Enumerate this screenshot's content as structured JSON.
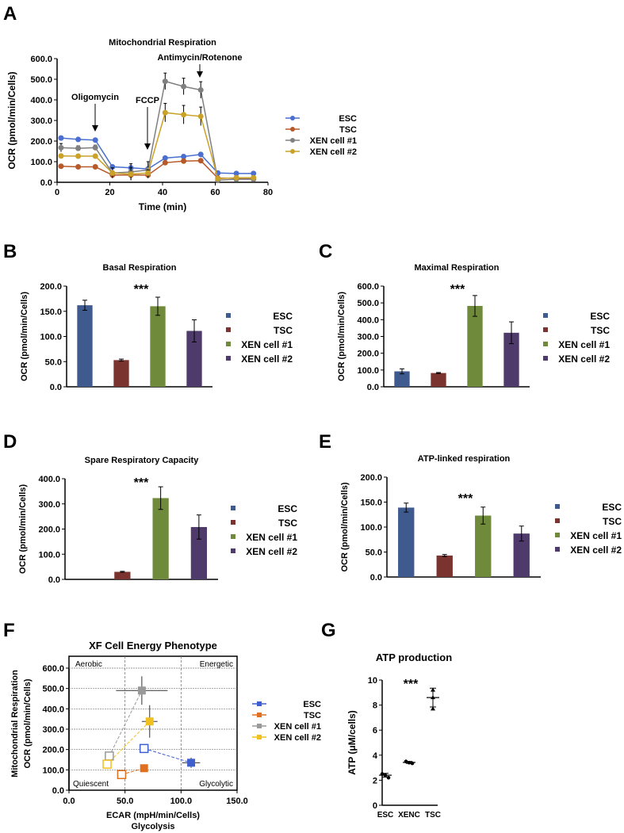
{
  "panel_letters": [
    "A",
    "B",
    "C",
    "D",
    "E",
    "F",
    "G"
  ],
  "chart_data": [
    {
      "id": "A",
      "type": "line",
      "title": "Mitochondrial Respiration",
      "xlabel": "Time (min)",
      "ylabel": "OCR (pmol/min/Cells)",
      "xlim": [
        0,
        80
      ],
      "ylim": [
        0,
        600
      ],
      "xticks": [
        "0",
        "20",
        "40",
        "60",
        "80"
      ],
      "yticks": [
        "0.0",
        "100.0",
        "200.0",
        "300.0",
        "400.0",
        "500.0",
        "600.0"
      ],
      "annotations": [
        "Oligomycin",
        "FCCP",
        "Antimycin/Rotenone"
      ],
      "x": [
        1.5,
        8,
        14.5,
        21,
        28,
        34.5,
        41,
        48,
        54.5,
        61,
        68,
        74.5
      ],
      "series": [
        {
          "name": "ESC",
          "color": "#4a6fd0",
          "values": [
            215,
            208,
            205,
            75,
            70,
            65,
            118,
            125,
            135,
            45,
            43,
            43
          ],
          "err": [
            8,
            6,
            6,
            8,
            6,
            6,
            8,
            8,
            10,
            8,
            8,
            8
          ]
        },
        {
          "name": "TSC",
          "color": "#b8592a",
          "values": [
            78,
            75,
            75,
            35,
            35,
            35,
            95,
            103,
            105,
            20,
            20,
            20
          ],
          "err": [
            4,
            4,
            4,
            4,
            4,
            4,
            6,
            6,
            6,
            3,
            3,
            3
          ]
        },
        {
          "name": "XEN cell #1",
          "color": "#808080",
          "values": [
            168,
            165,
            168,
            45,
            50,
            60,
            490,
            465,
            448,
            10,
            15,
            15
          ],
          "err": [
            20,
            12,
            12,
            25,
            40,
            40,
            40,
            40,
            40,
            8,
            8,
            8
          ]
        },
        {
          "name": "XEN cell #2",
          "color": "#c9a227",
          "values": [
            128,
            127,
            127,
            45,
            40,
            45,
            338,
            328,
            320,
            18,
            22,
            22
          ],
          "err": [
            8,
            8,
            8,
            10,
            30,
            15,
            45,
            45,
            45,
            6,
            6,
            6
          ]
        }
      ]
    },
    {
      "id": "B",
      "type": "bar",
      "title": "Basal Respiration",
      "ylabel": "OCR (pmol/min/Cells)",
      "ylim": [
        0,
        200
      ],
      "yticks": [
        "0.0",
        "50.0",
        "100.0",
        "150.0",
        "200.0"
      ],
      "significance": "***",
      "categories": [
        "ESC",
        "TSC",
        "XEN cell #1",
        "XEN cell #2"
      ],
      "values": [
        162,
        53,
        160,
        111
      ],
      "err": [
        10,
        2,
        18,
        22
      ]
    },
    {
      "id": "C",
      "type": "bar",
      "title": "Maximal Respiration",
      "ylabel": "OCR (pmol/min/Cells)",
      "ylim": [
        0,
        600
      ],
      "yticks": [
        "0.0",
        "100.0",
        "200.0",
        "300.0",
        "400.0",
        "500.0",
        "600.0"
      ],
      "significance": "***",
      "categories": [
        "ESC",
        "TSC",
        "XEN cell #1",
        "XEN cell #2"
      ],
      "values": [
        92,
        82,
        482,
        322
      ],
      "err": [
        15,
        3,
        62,
        65
      ]
    },
    {
      "id": "D",
      "type": "bar",
      "title": "Spare Respiratory Capacity",
      "ylabel": "OCR (pmol/min/Cells)",
      "ylim": [
        0,
        400
      ],
      "yticks": [
        "0.0",
        "100.0",
        "200.0",
        "300.0",
        "400.0"
      ],
      "significance": "***",
      "categories": [
        "ESC",
        "TSC",
        "XEN cell #1",
        "XEN cell #2"
      ],
      "values": [
        0,
        30,
        323,
        208
      ],
      "err": [
        0,
        2,
        45,
        48
      ]
    },
    {
      "id": "E",
      "type": "bar",
      "title": "ATP-linked respiration",
      "ylabel": "OCR (pmol/min/Cells)",
      "ylim": [
        0,
        200
      ],
      "yticks": [
        "0.0",
        "50.0",
        "100.0",
        "150.0",
        "200.0"
      ],
      "significance": "***",
      "categories": [
        "ESC",
        "TSC",
        "XEN cell #1",
        "XEN cell #2"
      ],
      "values": [
        139,
        43,
        123,
        87
      ],
      "err": [
        9,
        2,
        17,
        15
      ]
    },
    {
      "id": "F",
      "type": "scatter",
      "title": "XF Cell Energy Phenotype",
      "xlabel": "ECAR (mpH/min/Cells)",
      "xlabel2": "Glycolysis",
      "ylabel": "OCR (pmol/min/Cells)",
      "ylabel2": "Mitochondrial Respiration",
      "xlim": [
        0,
        150
      ],
      "ylim": [
        0,
        600
      ],
      "xticks": [
        "0.0",
        "50.0",
        "100.0",
        "150.0"
      ],
      "yticks": [
        "0.0",
        "100.0",
        "200.0",
        "300.0",
        "400.0",
        "500.0",
        "600.0"
      ],
      "quadrants": [
        "Aerobic",
        "Energetic",
        "Quiescent",
        "Glycolytic"
      ],
      "series": [
        {
          "name": "ESC",
          "color": "#3f5fcf",
          "baseline": [
            67,
            205
          ],
          "stressed": [
            109,
            135
          ],
          "xerr": 8,
          "yerr": 25
        },
        {
          "name": "TSC",
          "color": "#e07020",
          "baseline": [
            47,
            77
          ],
          "stressed": [
            67,
            108
          ],
          "xerr": 0,
          "yerr": 0
        },
        {
          "name": "XEN cell #1",
          "color": "#999999",
          "baseline": [
            36,
            168
          ],
          "stressed": [
            65,
            490
          ],
          "xerr": 23,
          "yerr": 70
        },
        {
          "name": "XEN cell #2",
          "color": "#f0c020",
          "baseline": [
            34,
            128
          ],
          "stressed": [
            72,
            338
          ],
          "xerr": 7,
          "yerr": 80
        }
      ]
    },
    {
      "id": "G",
      "type": "scatter",
      "title": "ATP production",
      "ylabel": "ATP (μM/cells)",
      "ylim": [
        0,
        10
      ],
      "yticks": [
        "0",
        "2",
        "4",
        "6",
        "8",
        "10"
      ],
      "significance": "***",
      "categories": [
        "ESC",
        "XENC",
        "TSC"
      ],
      "points": [
        [
          2.5,
          2.4,
          2.2
        ],
        [
          3.5,
          3.4,
          3.35
        ],
        [
          9.2,
          8.6,
          7.7
        ]
      ],
      "means": [
        2.4,
        3.42,
        8.6
      ],
      "sd": [
        0.15,
        0.08,
        0.75
      ]
    }
  ],
  "bar_colors": [
    "#3f5a8f",
    "#7b3330",
    "#6f8a3a",
    "#4e3a6b"
  ]
}
